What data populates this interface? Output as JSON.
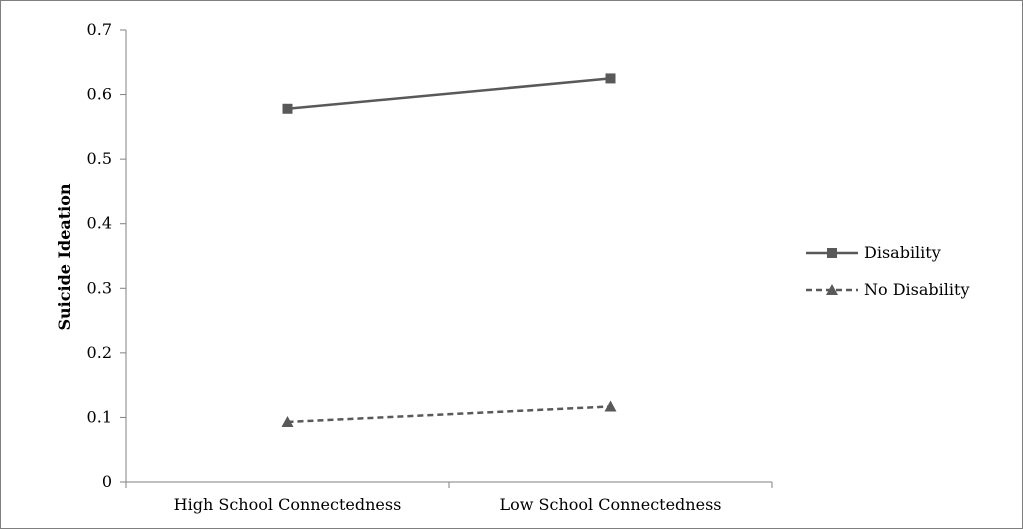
{
  "chart_data": {
    "type": "line",
    "title": "",
    "xlabel": "",
    "ylabel": "Suicide Ideation",
    "categories": [
      "High School Connectedness",
      "Low School Connectedness"
    ],
    "ylim": [
      0,
      0.7
    ],
    "yticks": [
      0,
      0.1,
      0.2,
      0.3,
      0.4,
      0.5,
      0.6,
      0.7
    ],
    "ytick_labels": [
      "0",
      "0.1",
      "0.2",
      "0.3",
      "0.4",
      "0.5",
      "0.6",
      "0.7"
    ],
    "grid": false,
    "legend_position": "right",
    "series": [
      {
        "name": "Disability",
        "values": [
          0.578,
          0.625
        ],
        "color": "#595959",
        "line_style": "solid",
        "marker": "square"
      },
      {
        "name": "No Disability",
        "values": [
          0.093,
          0.117
        ],
        "color": "#595959",
        "line_style": "dashed",
        "marker": "triangle"
      }
    ]
  }
}
